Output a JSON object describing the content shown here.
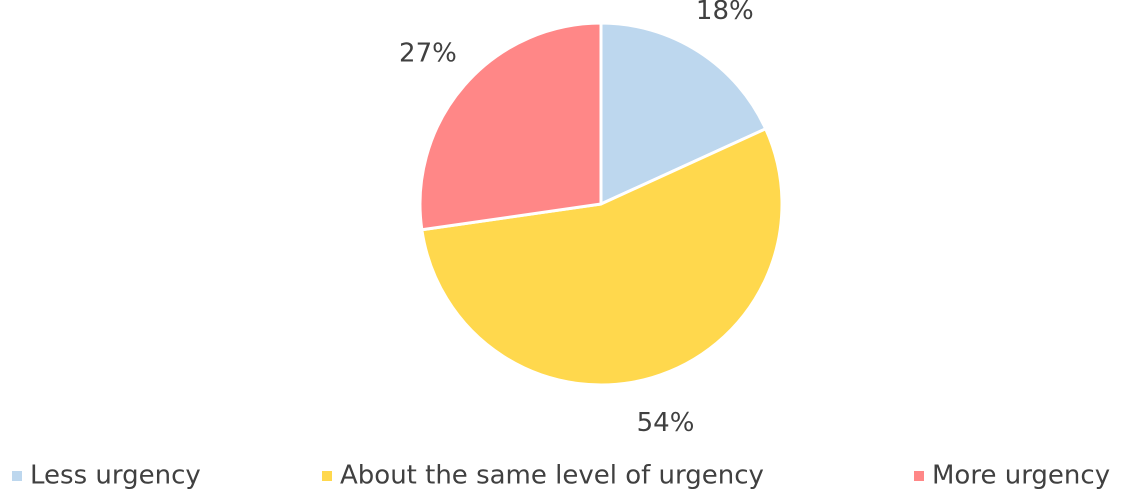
{
  "chart_data": {
    "type": "pie",
    "categories": [
      "Less urgency",
      "About the same level of urgency",
      "More urgency"
    ],
    "values": [
      18,
      54,
      27
    ],
    "value_labels": [
      "18%",
      "54%",
      "27%"
    ],
    "colors": [
      "#bdd7ee",
      "#ffd84d",
      "#ff8787"
    ],
    "legend": "bottom"
  }
}
